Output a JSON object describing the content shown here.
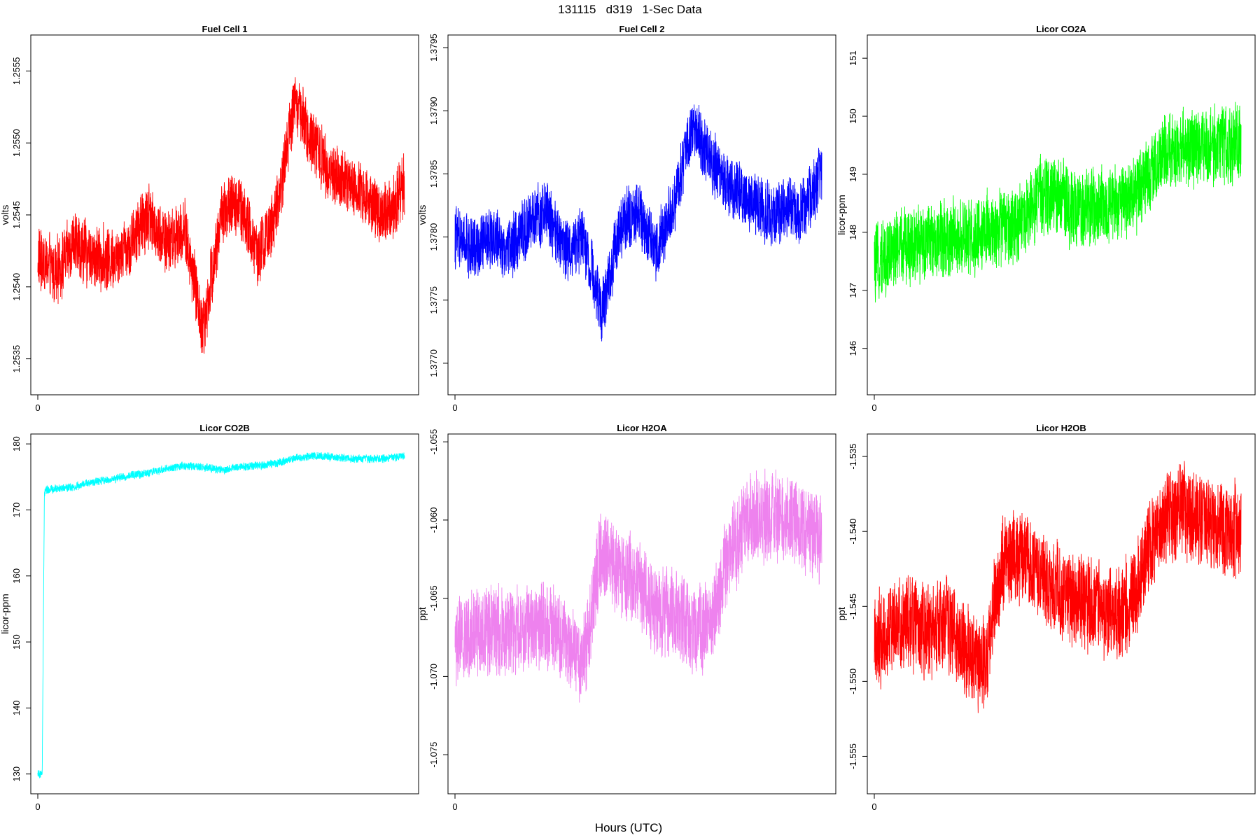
{
  "title": "131115   d319   1-Sec Data",
  "xlabel": "Hours (UTC)",
  "chart_data": [
    {
      "type": "line",
      "title": "Fuel Cell 1",
      "ylabel": "volts",
      "color": "#ff0000",
      "x_ticks": [
        "0"
      ],
      "y_ticks": [
        1.2535,
        1.254,
        1.2545,
        1.255,
        1.2555
      ],
      "y_tick_labels": [
        "1.2535",
        "1.2540",
        "1.2545",
        "1.2550",
        "1.2555"
      ],
      "ylim": [
        1.25325,
        1.25575
      ],
      "series": [
        {
          "x": [
            0,
            0.05,
            0.1,
            0.15,
            0.2,
            0.25,
            0.3,
            0.35,
            0.4,
            0.45,
            0.5,
            0.55,
            0.6,
            0.65,
            0.7,
            0.75,
            0.8,
            0.85,
            0.9,
            0.95,
            1.0
          ],
          "y": [
            1.2542,
            1.2541,
            1.2543,
            1.2542,
            1.2542,
            1.2543,
            1.2545,
            1.2543,
            1.2544,
            1.2537,
            1.2545,
            1.2546,
            1.2542,
            1.2545,
            1.2553,
            1.255,
            1.2548,
            1.2547,
            1.2546,
            1.2545,
            1.2547
          ],
          "noise": 0.00025
        }
      ]
    },
    {
      "type": "line",
      "title": "Fuel Cell 2",
      "ylabel": "volts",
      "color": "#0000ff",
      "x_ticks": [
        "0"
      ],
      "y_ticks": [
        1.377,
        1.3775,
        1.378,
        1.3785,
        1.379,
        1.3795
      ],
      "y_tick_labels": [
        "1.3770",
        "1.3775",
        "1.3780",
        "1.3785",
        "1.3790",
        "1.3795"
      ],
      "ylim": [
        1.37675,
        1.3796
      ],
      "series": [
        {
          "x": [
            0,
            0.05,
            0.1,
            0.15,
            0.2,
            0.25,
            0.3,
            0.35,
            0.4,
            0.45,
            0.5,
            0.55,
            0.6,
            0.65,
            0.7,
            0.75,
            0.8,
            0.85,
            0.9,
            0.95,
            1.0
          ],
          "y": [
            1.378,
            1.3779,
            1.378,
            1.3779,
            1.3781,
            1.3782,
            1.3779,
            1.378,
            1.3774,
            1.3781,
            1.3782,
            1.3779,
            1.3783,
            1.3789,
            1.3786,
            1.3784,
            1.3783,
            1.3782,
            1.3782,
            1.3782,
            1.3785
          ],
          "noise": 0.00028
        }
      ]
    },
    {
      "type": "line",
      "title": "Licor CO2A",
      "ylabel": "licor-ppm",
      "color": "#00ff00",
      "x_ticks": [
        "0"
      ],
      "y_ticks": [
        146,
        147,
        148,
        149,
        150,
        151
      ],
      "y_tick_labels": [
        "146",
        "147",
        "148",
        "149",
        "150",
        "151"
      ],
      "ylim": [
        145.2,
        151.4
      ],
      "series": [
        {
          "x": [
            0,
            0.05,
            0.1,
            0.15,
            0.2,
            0.25,
            0.3,
            0.35,
            0.4,
            0.45,
            0.5,
            0.55,
            0.6,
            0.65,
            0.7,
            0.75,
            0.8,
            0.85,
            0.9,
            0.95,
            1.0
          ],
          "y": [
            147.4,
            147.7,
            147.8,
            147.8,
            147.9,
            147.9,
            148.0,
            148.1,
            148.2,
            148.6,
            148.6,
            148.4,
            148.4,
            148.5,
            148.6,
            149.0,
            149.4,
            149.5,
            149.5,
            149.5,
            149.6
          ],
          "noise": 0.75
        }
      ]
    },
    {
      "type": "line",
      "title": "Licor CO2B",
      "ylabel": "licor-ppm",
      "color": "#00ffff",
      "x_ticks": [
        "0"
      ],
      "y_ticks": [
        130,
        140,
        150,
        160,
        170,
        180
      ],
      "y_tick_labels": [
        "130",
        "140",
        "150",
        "160",
        "170",
        "180"
      ],
      "ylim": [
        127,
        181.5
      ],
      "series": [
        {
          "x": [
            0,
            0.012,
            0.018,
            0.022,
            0.05,
            0.1,
            0.15,
            0.2,
            0.25,
            0.3,
            0.35,
            0.4,
            0.45,
            0.5,
            0.55,
            0.6,
            0.65,
            0.7,
            0.75,
            0.8,
            0.85,
            0.9,
            0.95,
            1.0
          ],
          "y": [
            130,
            130,
            172.5,
            173,
            173.2,
            173.5,
            174.2,
            174.6,
            175.2,
            175.6,
            176.2,
            176.7,
            176.5,
            176.0,
            176.5,
            176.7,
            177.0,
            177.8,
            178.2,
            178.0,
            177.8,
            177.7,
            177.8,
            178.2
          ],
          "noise": 0.7
        }
      ]
    },
    {
      "type": "line",
      "title": "Licor H2OA",
      "ylabel": "ppt",
      "color": "#ee82ee",
      "x_ticks": [
        "0"
      ],
      "y_ticks": [
        -1.075,
        -1.07,
        -1.065,
        -1.06,
        -1.055
      ],
      "y_tick_labels": [
        "-1.075",
        "-1.070",
        "-1.065",
        "-1.060",
        "-1.055"
      ],
      "ylim": [
        -1.0775,
        -1.0545
      ],
      "series": [
        {
          "x": [
            0,
            0.05,
            0.1,
            0.15,
            0.2,
            0.25,
            0.3,
            0.35,
            0.4,
            0.45,
            0.5,
            0.55,
            0.6,
            0.65,
            0.7,
            0.75,
            0.8,
            0.85,
            0.9,
            0.95,
            1.0
          ],
          "y": [
            -1.068,
            -1.067,
            -1.0668,
            -1.0672,
            -1.067,
            -1.0665,
            -1.068,
            -1.069,
            -1.062,
            -1.0635,
            -1.064,
            -1.066,
            -1.066,
            -1.067,
            -1.0665,
            -1.062,
            -1.06,
            -1.0598,
            -1.06,
            -1.0605,
            -1.061
          ],
          "noise": 0.0032
        }
      ]
    },
    {
      "type": "line",
      "title": "Licor H2OB",
      "ylabel": "ppt",
      "color": "#ff0000",
      "x_ticks": [
        "0"
      ],
      "y_ticks": [
        -1.555,
        -1.55,
        -1.545,
        -1.54,
        -1.535
      ],
      "y_tick_labels": [
        "-1.555",
        "-1.550",
        "-1.545",
        "-1.540",
        "-1.535"
      ],
      "ylim": [
        -1.5575,
        -1.5335
      ],
      "series": [
        {
          "x": [
            0,
            0.05,
            0.1,
            0.15,
            0.2,
            0.25,
            0.3,
            0.35,
            0.4,
            0.45,
            0.5,
            0.55,
            0.6,
            0.65,
            0.7,
            0.75,
            0.8,
            0.85,
            0.9,
            0.95,
            1.0
          ],
          "y": [
            -1.5475,
            -1.5462,
            -1.546,
            -1.5468,
            -1.5462,
            -1.548,
            -1.549,
            -1.542,
            -1.5415,
            -1.543,
            -1.544,
            -1.5445,
            -1.545,
            -1.546,
            -1.545,
            -1.541,
            -1.539,
            -1.5385,
            -1.5395,
            -1.5398,
            -1.54
          ],
          "noise": 0.0035
        }
      ]
    }
  ]
}
